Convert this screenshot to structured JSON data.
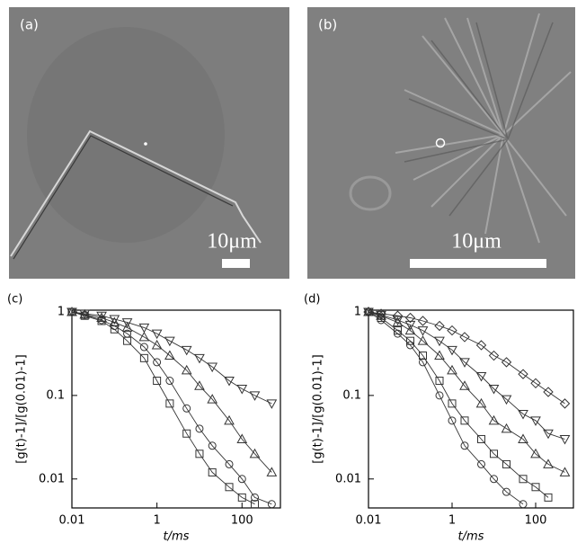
{
  "panels": [
    {
      "label": "(a)",
      "scale_label": "10μm"
    },
    {
      "label": "(b)",
      "scale_label": "10μm"
    }
  ],
  "chart_data": [
    {
      "type": "scatter",
      "panel_label": "(c)",
      "x_label": "t/ms",
      "y_label": "[g(t)-1]/[g(0.01)-1]",
      "log_x": true,
      "log_y": true,
      "xlim": [
        0.01,
        800
      ],
      "ylim": [
        0.0045,
        1.05
      ],
      "xticks": [
        0.01,
        1,
        100
      ],
      "yticks": [
        0.01,
        0.1,
        1
      ],
      "x": [
        0.01,
        0.02,
        0.05,
        0.1,
        0.2,
        0.5,
        1,
        2,
        5,
        10,
        20,
        50,
        100,
        200,
        500
      ],
      "series": [
        {
          "marker": "square",
          "color": "#333333",
          "values": [
            1,
            0.9,
            0.78,
            0.62,
            0.45,
            0.28,
            0.15,
            0.08,
            0.035,
            0.02,
            0.012,
            0.008,
            0.006,
            0.005,
            null
          ]
        },
        {
          "marker": "circle",
          "color": "#333333",
          "values": [
            1,
            0.92,
            0.8,
            0.68,
            0.55,
            0.38,
            0.25,
            0.15,
            0.07,
            0.04,
            0.025,
            0.015,
            0.01,
            0.006,
            0.005
          ]
        },
        {
          "marker": "triangle-up",
          "color": "#333333",
          "values": [
            1,
            0.93,
            0.85,
            0.75,
            0.65,
            0.5,
            0.4,
            0.3,
            0.2,
            0.13,
            0.09,
            0.05,
            0.03,
            0.02,
            0.012
          ]
        },
        {
          "marker": "triangle-down",
          "color": "#333333",
          "values": [
            1,
            0.95,
            0.9,
            0.82,
            0.75,
            0.65,
            0.55,
            0.45,
            0.35,
            0.28,
            0.22,
            0.15,
            0.12,
            0.1,
            0.08
          ]
        }
      ]
    },
    {
      "type": "scatter",
      "panel_label": "(d)",
      "x_label": "t/ms",
      "y_label": "[g(t)-1]/[g(0.01)-1]",
      "log_x": true,
      "log_y": true,
      "xlim": [
        0.01,
        800
      ],
      "ylim": [
        0.0045,
        1.05
      ],
      "xticks": [
        0.01,
        1,
        100
      ],
      "yticks": [
        0.01,
        0.1,
        1
      ],
      "x": [
        0.01,
        0.02,
        0.05,
        0.1,
        0.2,
        0.5,
        1,
        2,
        5,
        10,
        20,
        50,
        100,
        200,
        500
      ],
      "series": [
        {
          "marker": "square",
          "color": "#333333",
          "values": [
            1,
            0.85,
            0.6,
            0.45,
            0.3,
            0.15,
            0.08,
            0.05,
            0.03,
            0.02,
            0.015,
            0.01,
            0.008,
            0.006,
            null
          ]
        },
        {
          "marker": "circle",
          "color": "#333333",
          "values": [
            1,
            0.8,
            0.55,
            0.4,
            0.25,
            0.1,
            0.05,
            0.025,
            0.015,
            0.01,
            0.007,
            0.005,
            null,
            null,
            null
          ]
        },
        {
          "marker": "triangle-up",
          "color": "#333333",
          "values": [
            1,
            0.9,
            0.75,
            0.6,
            0.45,
            0.3,
            0.2,
            0.13,
            0.08,
            0.05,
            0.04,
            0.03,
            0.02,
            0.015,
            0.012
          ]
        },
        {
          "marker": "triangle-down",
          "color": "#333333",
          "values": [
            1,
            0.92,
            0.8,
            0.7,
            0.6,
            0.45,
            0.35,
            0.25,
            0.17,
            0.12,
            0.09,
            0.06,
            0.05,
            0.035,
            0.03
          ]
        },
        {
          "marker": "diamond",
          "color": "#333333",
          "values": [
            1,
            0.95,
            0.9,
            0.85,
            0.78,
            0.68,
            0.6,
            0.5,
            0.4,
            0.3,
            0.25,
            0.18,
            0.14,
            0.11,
            0.08
          ]
        }
      ]
    }
  ]
}
